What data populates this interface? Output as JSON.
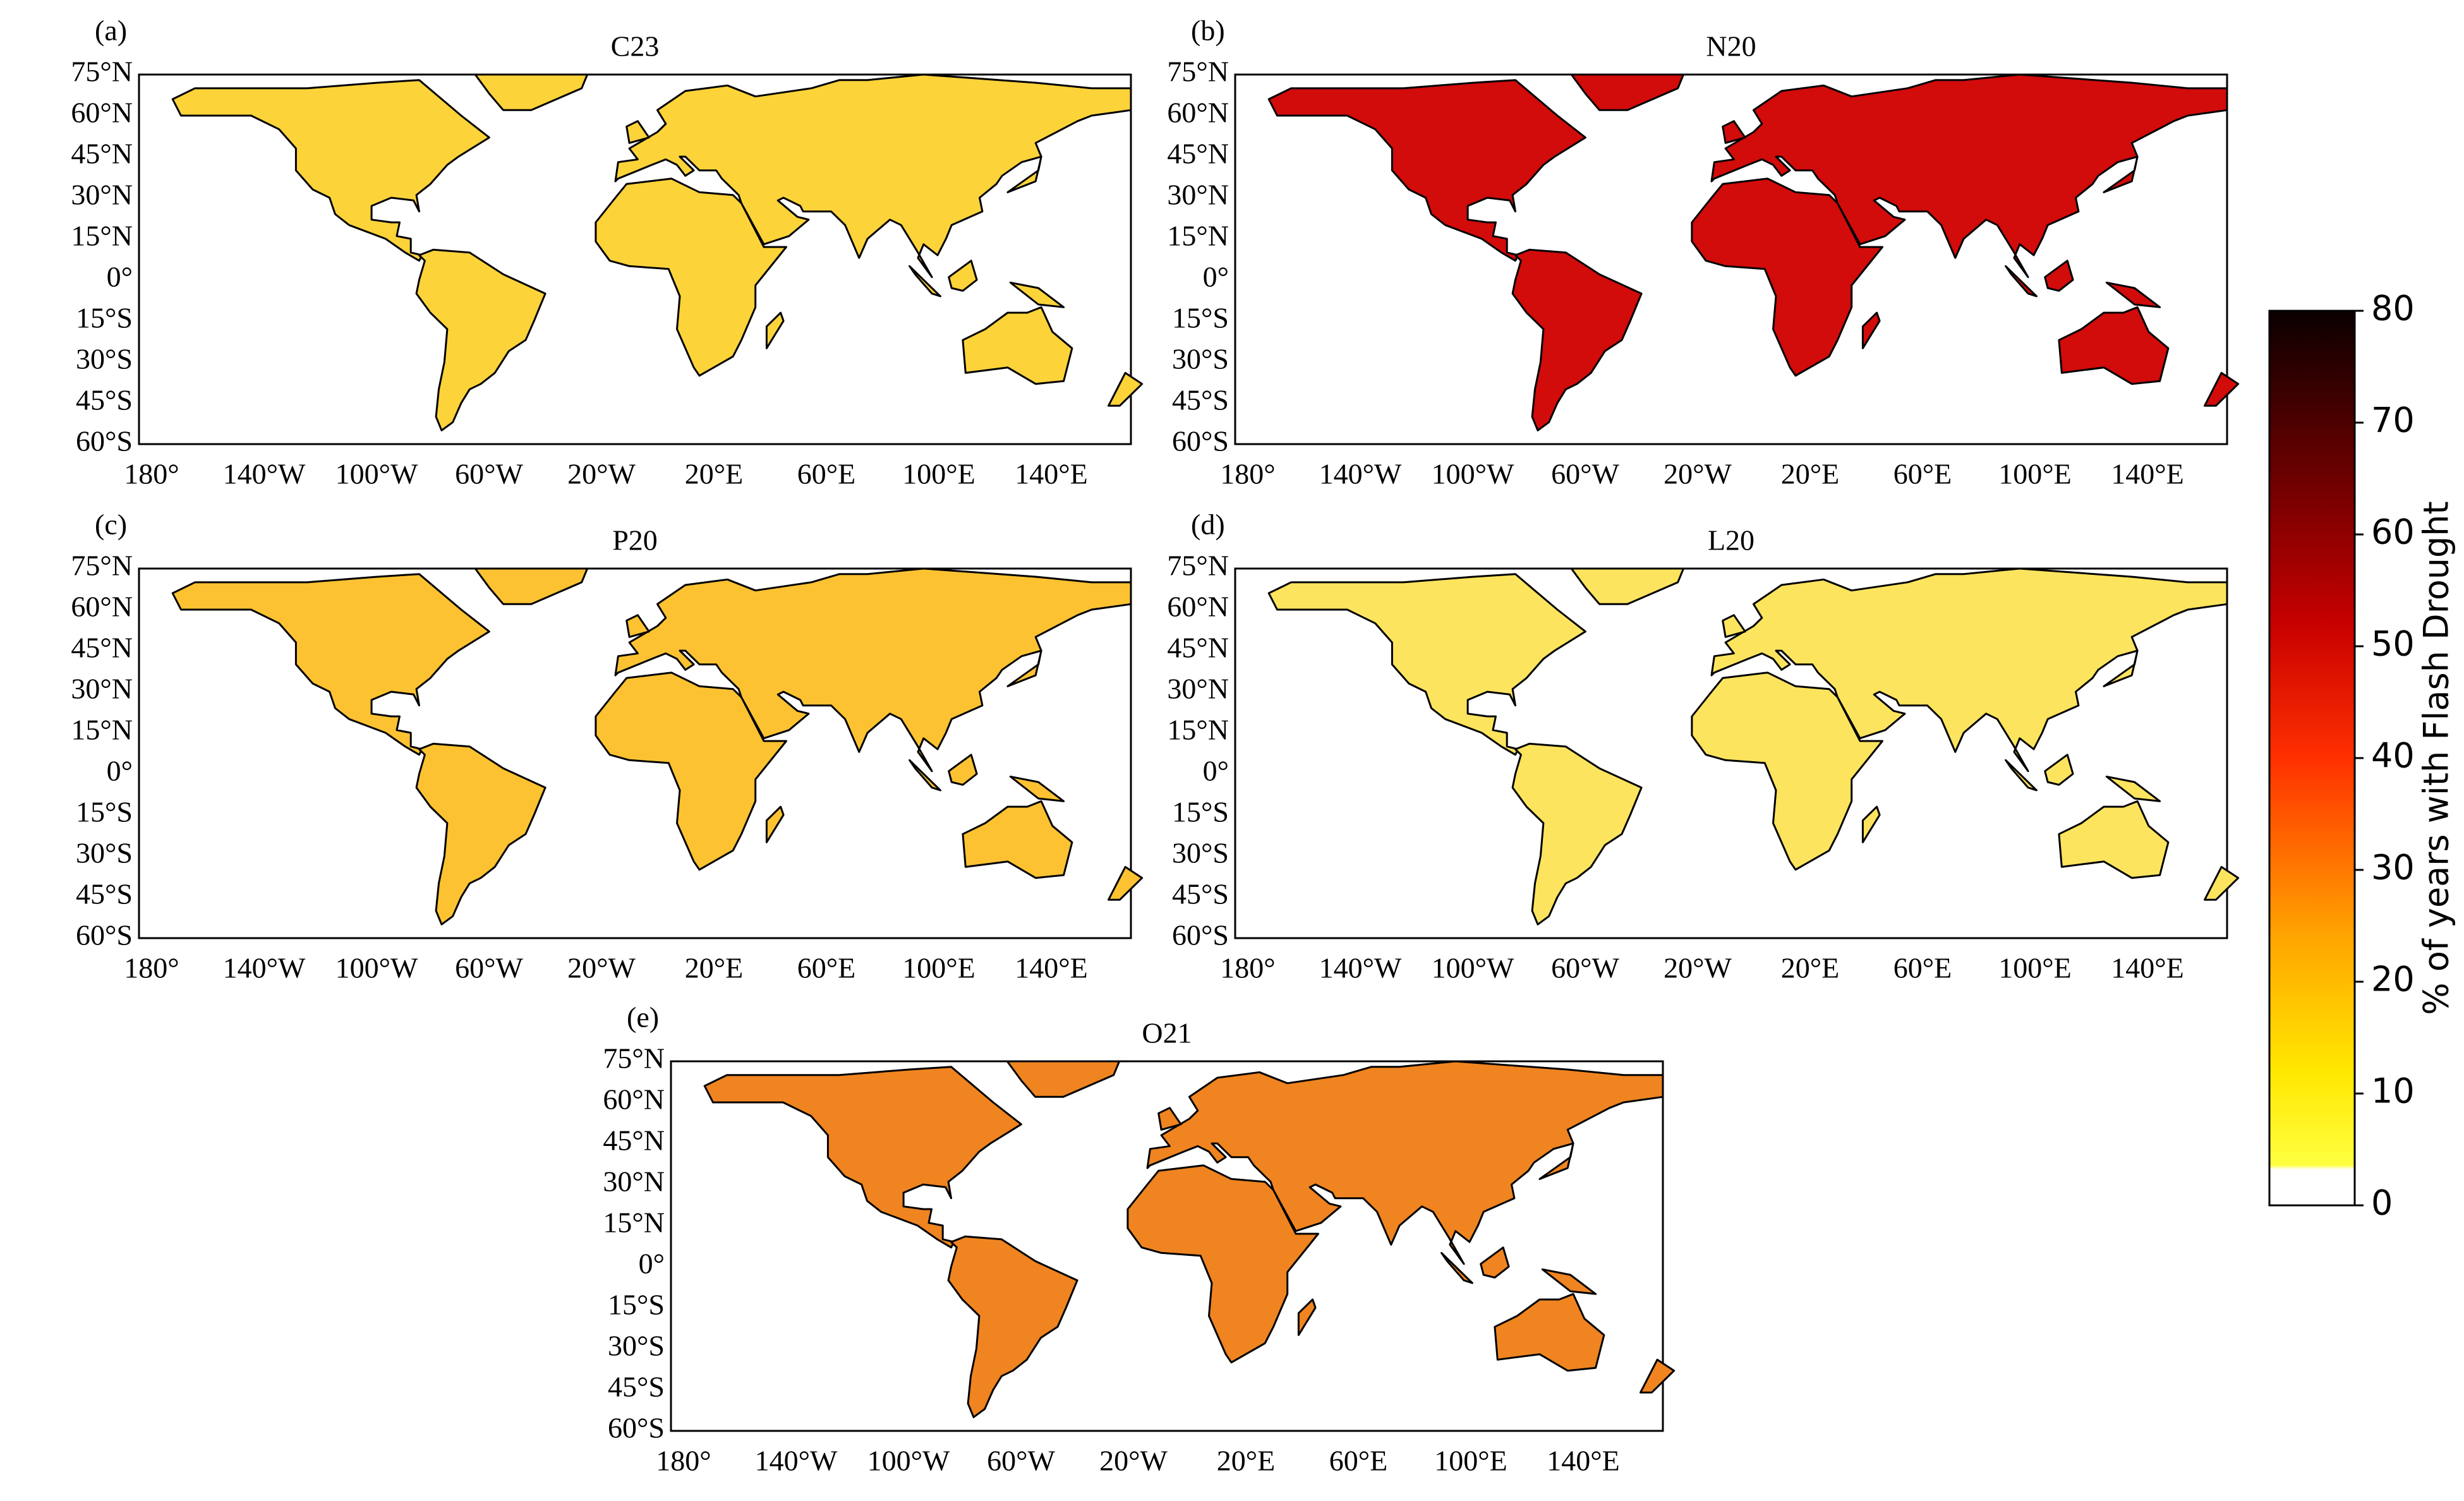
{
  "panels": [
    {
      "label": "(a)",
      "title": "C23",
      "color": "#fdd33a"
    },
    {
      "label": "(b)",
      "title": "N20",
      "color": "#d20b0b"
    },
    {
      "label": "(c)",
      "title": "P20",
      "color": "#fcc232"
    },
    {
      "label": "(d)",
      "title": "L20",
      "color": "#fde45e"
    },
    {
      "label": "(e)",
      "title": "O21",
      "color": "#ef8420"
    }
  ],
  "lat_ticks": [
    "75°N",
    "60°N",
    "45°N",
    "30°N",
    "15°N",
    "0°",
    "15°S",
    "30°S",
    "45°S",
    "60°S"
  ],
  "lon_ticks": [
    "180°",
    "140°W",
    "100°W",
    "60°W",
    "20°W",
    "20°E",
    "60°E",
    "100°E",
    "140°E"
  ],
  "colorbar": {
    "label": "% of years with Flash Drought",
    "lim": [
      0,
      80
    ],
    "ticks": [
      0,
      10,
      20,
      30,
      40,
      50,
      60,
      70,
      80
    ]
  }
}
